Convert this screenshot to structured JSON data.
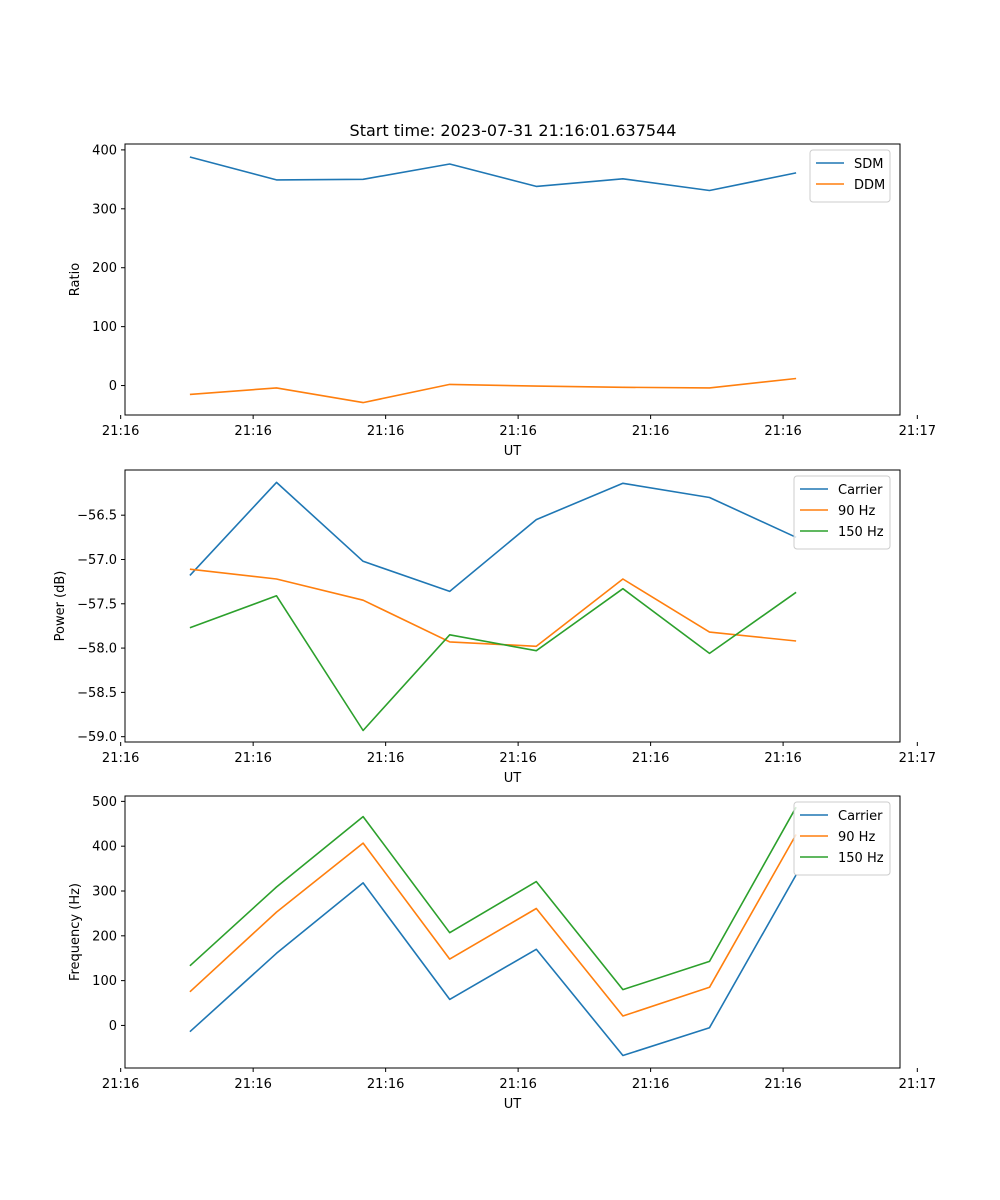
{
  "title": "Start time: 2023-07-31 21:16:01.637544",
  "chart_data": [
    {
      "type": "line",
      "xlabel": "UT",
      "ylabel": "Ratio",
      "x": [
        1,
        2,
        3,
        4,
        5,
        6,
        7,
        8
      ],
      "xlim": [
        0.25,
        9.2
      ],
      "xticks": [
        0.2,
        1.73,
        3.26,
        4.79,
        6.32,
        7.85,
        9.4
      ],
      "xtick_labels": [
        "21:16",
        "21:16",
        "21:16",
        "21:16",
        "21:16",
        "21:16",
        "21:17"
      ],
      "ylim": [
        -50,
        410
      ],
      "yticks": [
        0,
        100,
        200,
        300,
        400
      ],
      "ytick_labels": [
        "0",
        "100",
        "200",
        "300",
        "400"
      ],
      "legend": "top-right",
      "series": [
        {
          "name": "SDM",
          "color": "#1f77b4",
          "values": [
            388,
            349,
            350,
            376,
            338,
            351,
            331,
            361
          ]
        },
        {
          "name": "DDM",
          "color": "#ff7f0e",
          "values": [
            -15,
            -4,
            -29,
            2,
            -1,
            -3,
            -4,
            12
          ]
        }
      ]
    },
    {
      "type": "line",
      "xlabel": "UT",
      "ylabel": "Power (dB)",
      "x": [
        1,
        2,
        3,
        4,
        5,
        6,
        7,
        8
      ],
      "xlim": [
        0.25,
        9.2
      ],
      "xticks": [
        0.2,
        1.73,
        3.26,
        4.79,
        6.32,
        7.85,
        9.4
      ],
      "xtick_labels": [
        "21:16",
        "21:16",
        "21:16",
        "21:16",
        "21:16",
        "21:16",
        "21:17"
      ],
      "ylim": [
        -59.06,
        -55.99
      ],
      "yticks": [
        -59.0,
        -58.5,
        -58.0,
        -57.5,
        -57.0,
        -56.5
      ],
      "ytick_labels": [
        "−59.0",
        "−58.5",
        "−58.0",
        "−57.5",
        "−57.0",
        "−56.5"
      ],
      "legend": "top-right",
      "series": [
        {
          "name": "Carrier",
          "color": "#1f77b4",
          "values": [
            -57.18,
            -56.13,
            -57.02,
            -57.36,
            -56.55,
            -56.14,
            -56.3,
            -56.75
          ]
        },
        {
          "name": "90 Hz",
          "color": "#ff7f0e",
          "values": [
            -57.11,
            -57.22,
            -57.46,
            -57.93,
            -57.98,
            -57.22,
            -57.82,
            -57.92
          ]
        },
        {
          "name": "150 Hz",
          "color": "#2ca02c",
          "values": [
            -57.77,
            -57.41,
            -58.93,
            -57.85,
            -58.03,
            -57.33,
            -58.06,
            -57.37
          ]
        }
      ]
    },
    {
      "type": "line",
      "xlabel": "UT",
      "ylabel": "Frequency (Hz)",
      "x": [
        1,
        2,
        3,
        4,
        5,
        6,
        7,
        8
      ],
      "xlim": [
        0.25,
        9.2
      ],
      "xticks": [
        0.2,
        1.73,
        3.26,
        4.79,
        6.32,
        7.85,
        9.4
      ],
      "xtick_labels": [
        "21:16",
        "21:16",
        "21:16",
        "21:16",
        "21:16",
        "21:16",
        "21:17"
      ],
      "ylim": [
        -95,
        512
      ],
      "yticks": [
        0,
        100,
        200,
        300,
        400,
        500
      ],
      "ytick_labels": [
        "0",
        "100",
        "200",
        "300",
        "400",
        "500"
      ],
      "legend": "top-right",
      "series": [
        {
          "name": "Carrier",
          "color": "#1f77b4",
          "values": [
            -14,
            161,
            318,
            58,
            170,
            -67,
            -5,
            336
          ]
        },
        {
          "name": "90 Hz",
          "color": "#ff7f0e",
          "values": [
            75,
            253,
            407,
            148,
            261,
            21,
            85,
            426
          ]
        },
        {
          "name": "150 Hz",
          "color": "#2ca02c",
          "values": [
            133,
            309,
            466,
            207,
            321,
            80,
            143,
            487
          ]
        }
      ]
    }
  ]
}
